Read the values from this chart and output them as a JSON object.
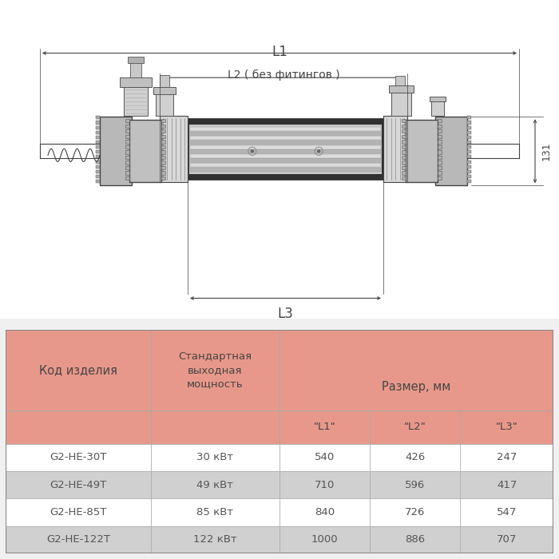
{
  "bg_color": "#f0f0f0",
  "draw_bg": "#ffffff",
  "table_header_color": "#e8988a",
  "table_row_odd": "#ffffff",
  "table_row_even": "#d0d0d0",
  "table_border_color": "#aaaaaa",
  "text_color": "#555555",
  "draw_line_color": "#444444",
  "sub_headers": [
    "\"L1\"",
    "\"L2\"",
    "\"L3\""
  ],
  "rows": [
    [
      "G2-HE-30T",
      "30 кВт",
      "540",
      "426",
      "247"
    ],
    [
      "G2-HE-49T",
      "49 кВт",
      "710",
      "596",
      "417"
    ],
    [
      "G2-HE-85T",
      "85 кВт",
      "840",
      "726",
      "547"
    ],
    [
      "G2-HE-122T",
      "122 кВт",
      "1000",
      "886",
      "707"
    ]
  ],
  "dim_131": "131",
  "dim_L1": "L1",
  "dim_L2": "L2 ( без фитингов )",
  "dim_L3": "L3",
  "col_header1": "Код изделия",
  "col_header2": "Стандартная\nвыходная\nмощность",
  "col_header3": "Размер, мм"
}
